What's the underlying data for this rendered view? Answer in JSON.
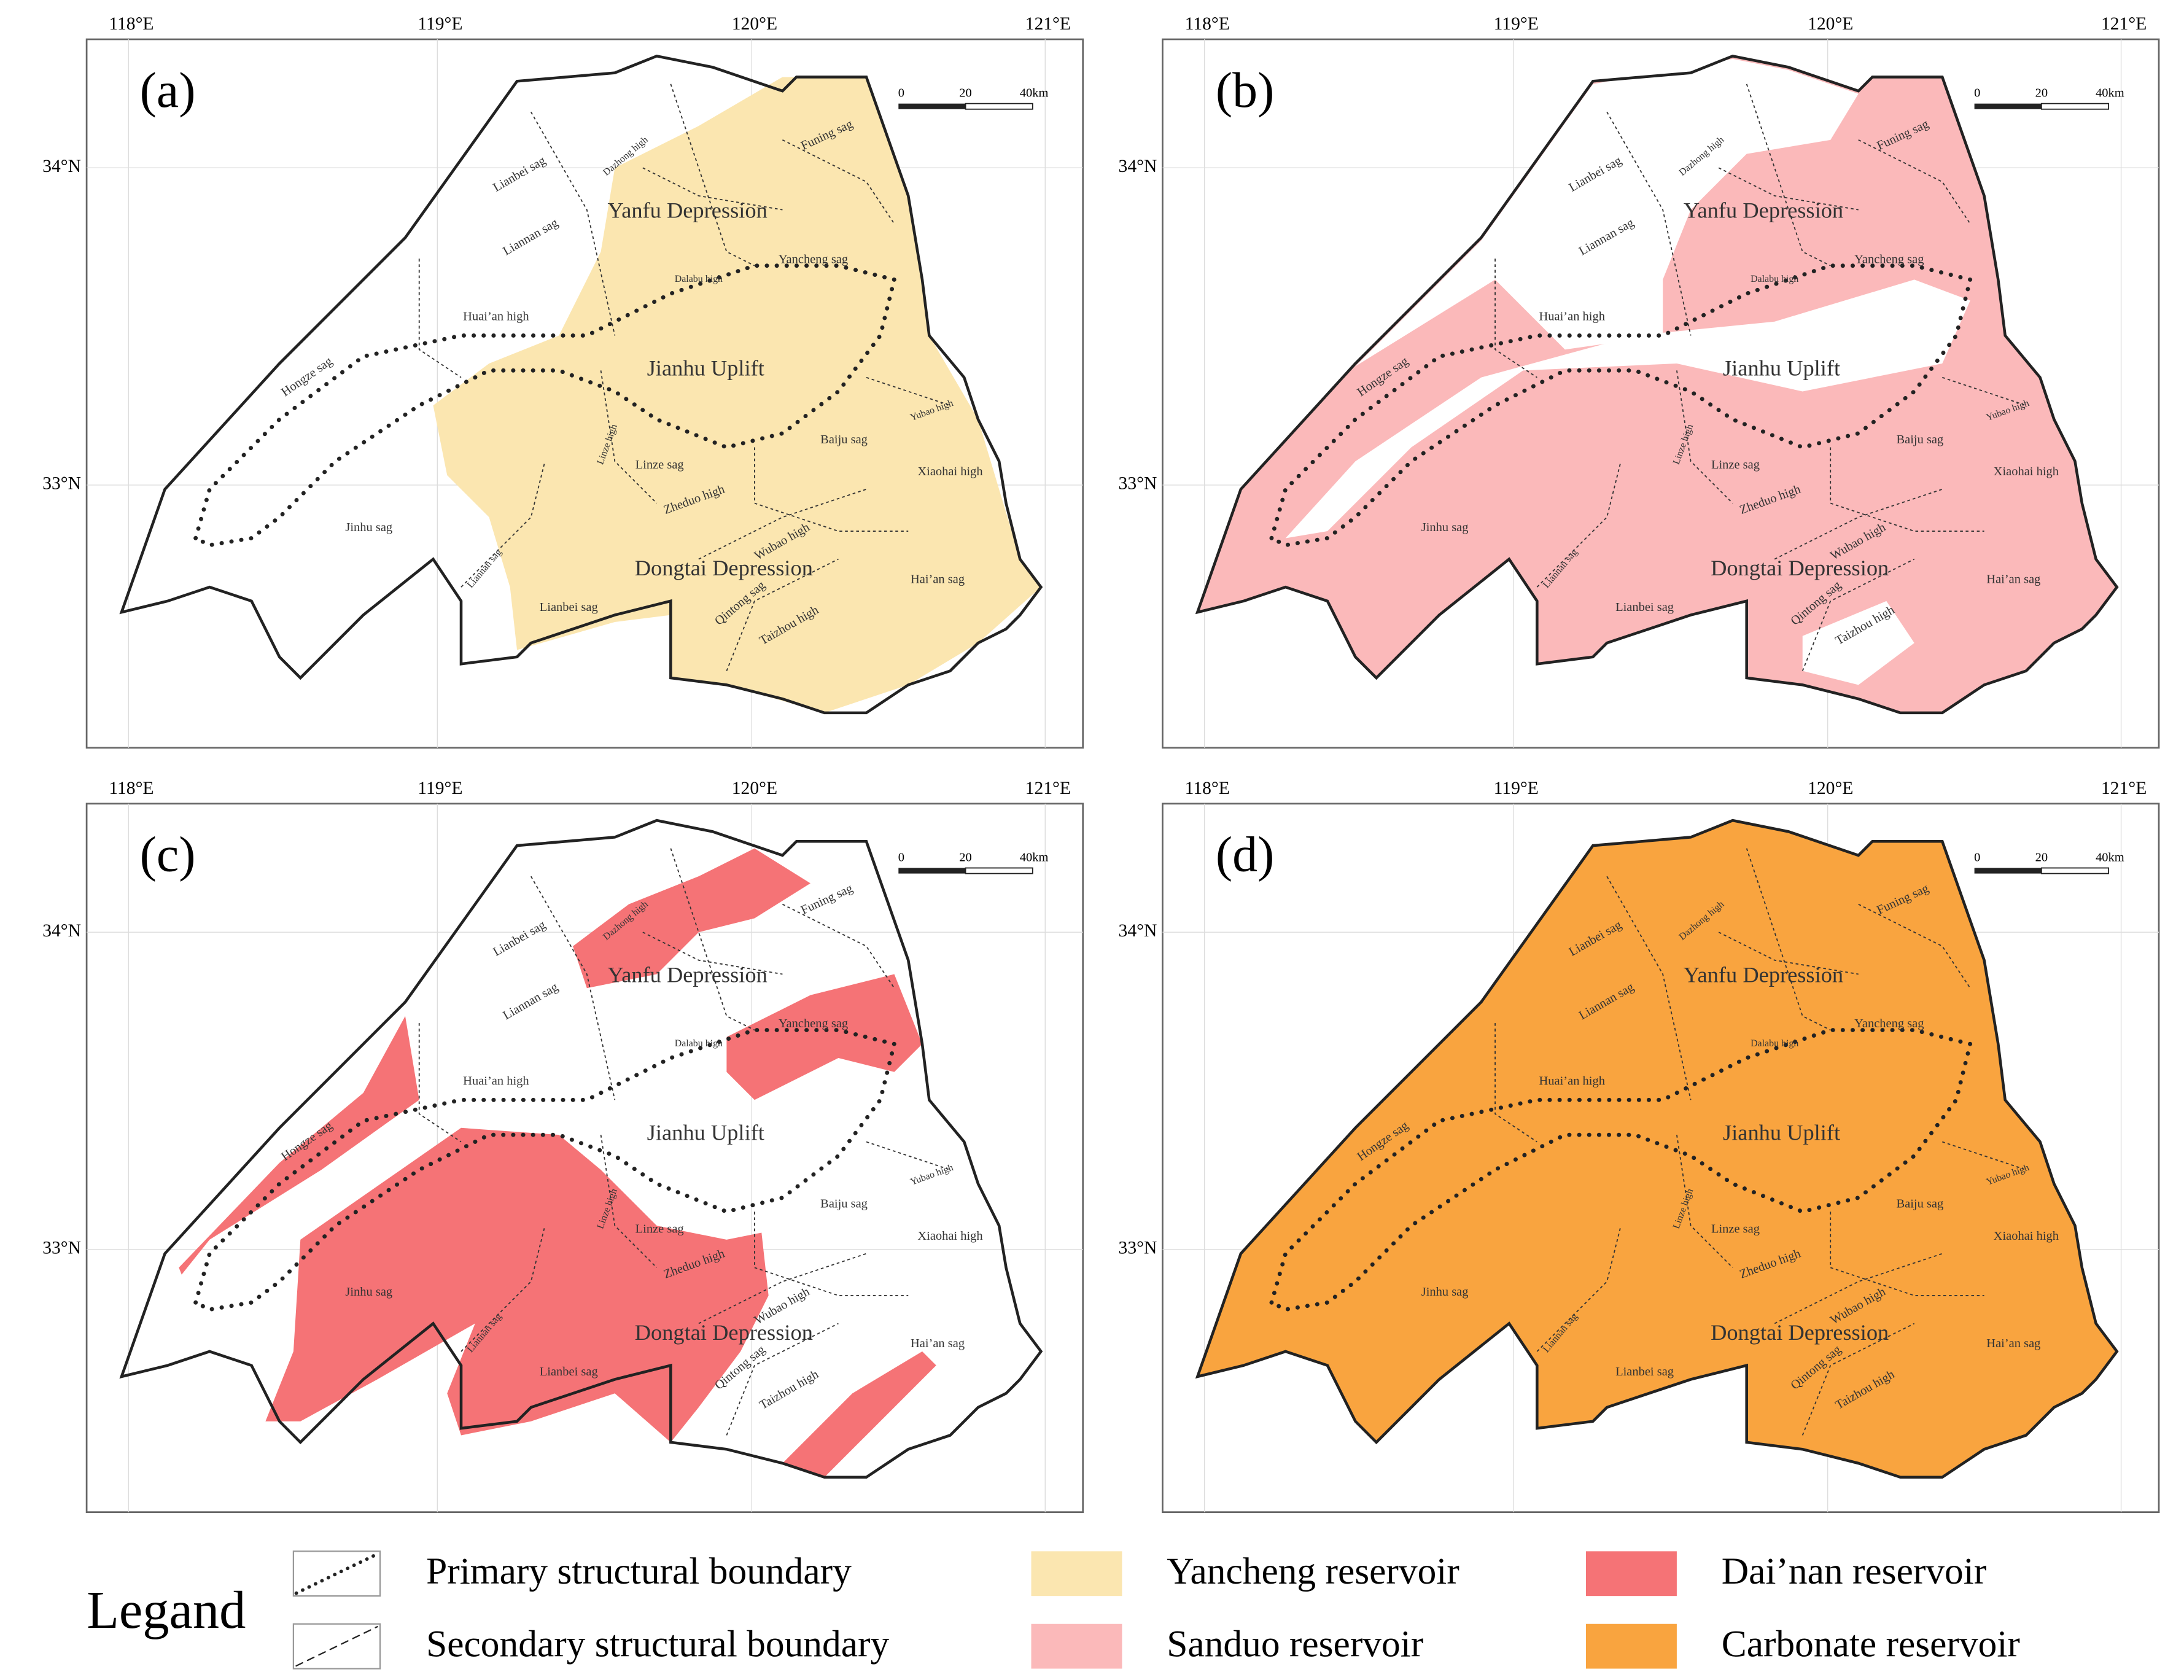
{
  "panels": [
    {
      "label": "(a)"
    },
    {
      "label": "(b)"
    },
    {
      "label": "(c)"
    },
    {
      "label": "(d)"
    }
  ],
  "longitude_ticks": [
    "118°E",
    "119°E",
    "120°E",
    "121°E"
  ],
  "latitude_ticks": [
    "34°N",
    "33°N"
  ],
  "scale_bar": [
    "0",
    "20",
    "40km"
  ],
  "places": [
    "Yanfu Depression",
    "Jianhu Uplift",
    "Dongtai Depression",
    "Lianbei sag",
    "Liannan sag",
    "Dazhong high",
    "Funing sag",
    "Yancheng sag",
    "Dalabu high",
    "Huai’an high",
    "Hongze sag",
    "Jinhu sag",
    "Baiju sag",
    "Yubao high",
    "Xiaohai high",
    "Linze sag",
    "Linze high",
    "Zheduo high",
    "Wubao high",
    "Qintong sag",
    "Taizhou high",
    "Hai’an sag",
    "Lianbei sag",
    "Liannan sag"
  ],
  "legend": {
    "title": "Legand",
    "items": [
      {
        "label": "Primary structural boundary"
      },
      {
        "label": "Secondary structural boundary"
      },
      {
        "label": "Yancheng reservoir",
        "color": "#fbe6b0"
      },
      {
        "label": "Sanduo reservoir",
        "color": "#fbb9ba"
      },
      {
        "label": "Dai’nan reservoir",
        "color": "#f57376"
      },
      {
        "label": "Carbonate reservoir",
        "color": "#f9a43f"
      }
    ]
  }
}
